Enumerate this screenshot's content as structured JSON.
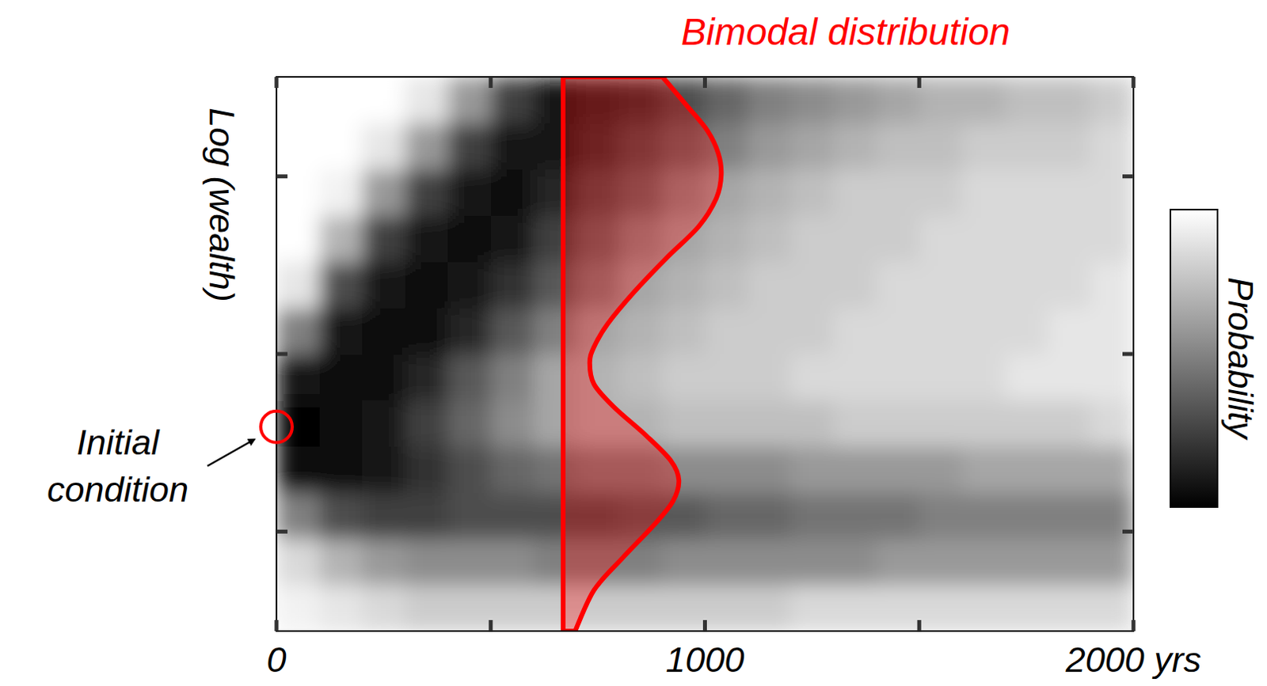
{
  "chart_data": {
    "type": "heatmap",
    "y_label": "Log (wealth)",
    "colorbar_label": "Probability",
    "colorbar_range": [
      0,
      1
    ],
    "xlim": [
      0,
      2000
    ],
    "xticks": [
      0,
      1000,
      {
        "value": 2000,
        "label": "2000 yrs"
      }
    ],
    "xminorticks": [
      500,
      1500
    ],
    "ylim": [
      0.44,
      3.56
    ],
    "yticks": [
      1,
      2,
      3
    ],
    "tick_labels": "x",
    "xbins": [
      0,
      100,
      200,
      300,
      400,
      500,
      600,
      700,
      800,
      900,
      1000,
      1100,
      1200,
      1300,
      1400,
      1500,
      1600,
      1700,
      1800,
      1900,
      2000
    ],
    "ybins": [
      0.44,
      0.7,
      0.96,
      1.22,
      1.48,
      1.74,
      2.0,
      2.26,
      2.52,
      2.78,
      3.04,
      3.3,
      3.56
    ],
    "cells": [
      [
        0.05,
        0.15,
        0.5,
        0.95,
        1.0,
        0.9,
        0.5,
        0.1,
        0,
        0,
        0,
        0
      ],
      [
        0.1,
        0.3,
        0.7,
        0.95,
        0.95,
        0.95,
        0.9,
        0.7,
        0.3,
        0.05,
        0,
        0
      ],
      [
        0.15,
        0.4,
        0.75,
        0.9,
        0.9,
        0.95,
        0.95,
        0.9,
        0.75,
        0.4,
        0.1,
        0
      ],
      [
        0.2,
        0.45,
        0.75,
        0.8,
        0.75,
        0.85,
        0.95,
        0.95,
        0.9,
        0.75,
        0.4,
        0.1
      ],
      [
        0.2,
        0.45,
        0.7,
        0.7,
        0.6,
        0.65,
        0.85,
        0.9,
        0.95,
        0.9,
        0.75,
        0.4
      ],
      [
        0.2,
        0.45,
        0.7,
        0.6,
        0.45,
        0.5,
        0.65,
        0.8,
        0.9,
        0.95,
        0.9,
        0.75
      ],
      [
        0.2,
        0.5,
        0.7,
        0.55,
        0.35,
        0.35,
        0.5,
        0.65,
        0.75,
        0.85,
        0.9,
        0.9
      ],
      [
        0.2,
        0.5,
        0.7,
        0.5,
        0.3,
        0.3,
        0.35,
        0.5,
        0.6,
        0.7,
        0.8,
        0.85
      ],
      [
        0.2,
        0.5,
        0.65,
        0.5,
        0.3,
        0.25,
        0.3,
        0.35,
        0.45,
        0.6,
        0.7,
        0.8
      ],
      [
        0.2,
        0.45,
        0.65,
        0.45,
        0.25,
        0.2,
        0.25,
        0.3,
        0.35,
        0.45,
        0.6,
        0.7
      ],
      [
        0.2,
        0.45,
        0.6,
        0.45,
        0.25,
        0.2,
        0.2,
        0.25,
        0.3,
        0.35,
        0.5,
        0.6
      ],
      [
        0.2,
        0.45,
        0.6,
        0.45,
        0.25,
        0.2,
        0.2,
        0.2,
        0.25,
        0.3,
        0.4,
        0.5
      ],
      [
        0.15,
        0.45,
        0.55,
        0.4,
        0.25,
        0.15,
        0.2,
        0.2,
        0.2,
        0.25,
        0.35,
        0.45
      ],
      [
        0.15,
        0.45,
        0.55,
        0.4,
        0.2,
        0.15,
        0.15,
        0.2,
        0.2,
        0.2,
        0.3,
        0.4
      ],
      [
        0.15,
        0.4,
        0.55,
        0.4,
        0.2,
        0.15,
        0.15,
        0.15,
        0.2,
        0.2,
        0.25,
        0.35
      ],
      [
        0.15,
        0.4,
        0.5,
        0.4,
        0.2,
        0.15,
        0.15,
        0.15,
        0.15,
        0.2,
        0.25,
        0.3
      ],
      [
        0.15,
        0.4,
        0.5,
        0.35,
        0.2,
        0.15,
        0.15,
        0.15,
        0.15,
        0.15,
        0.2,
        0.3
      ],
      [
        0.15,
        0.4,
        0.5,
        0.35,
        0.2,
        0.1,
        0.15,
        0.15,
        0.15,
        0.15,
        0.2,
        0.25
      ],
      [
        0.15,
        0.4,
        0.5,
        0.35,
        0.2,
        0.1,
        0.1,
        0.15,
        0.15,
        0.15,
        0.2,
        0.25
      ],
      [
        0.15,
        0.4,
        0.5,
        0.35,
        0.15,
        0.1,
        0.1,
        0.1,
        0.15,
        0.15,
        0.15,
        0.2
      ]
    ],
    "profile": {
      "name": "Bimodal distribution",
      "color": "#ff0000",
      "x": 669,
      "y": [
        3.56,
        3.4,
        3.26,
        3.13,
        3.01,
        2.88,
        2.72,
        2.54,
        2.35,
        2.17,
        2.04,
        1.95,
        1.83,
        1.7,
        1.54,
        1.4,
        1.29,
        1.17,
        1.04,
        0.85,
        0.67,
        0.44
      ],
      "density": [
        232,
        288,
        336,
        362,
        369,
        358,
        317,
        241,
        166,
        104,
        72,
        62,
        72,
        119,
        194,
        251,
        270,
        256,
        213,
        138,
        72,
        28
      ]
    },
    "annotations": [
      {
        "text": "Initial condition",
        "x": 0,
        "y": 1.59
      }
    ]
  }
}
